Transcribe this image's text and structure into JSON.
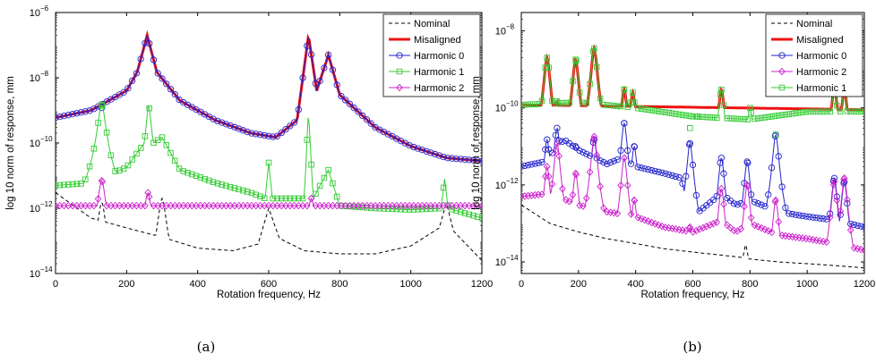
{
  "chart_data": [
    {
      "type": "line",
      "caption": "(a)",
      "xlabel": "Rotation frequency, Hz",
      "ylabel": "log 10 norm of response, mm",
      "xlim": [
        0,
        1200
      ],
      "ylim": [
        1e-14,
        1e-06
      ],
      "y_scale": "log",
      "xticks": [
        0,
        200,
        400,
        600,
        800,
        1000,
        1200
      ],
      "yticks": [
        {
          "value": 1e-14,
          "mantissa": "10",
          "exp": "−14"
        },
        {
          "value": 1e-12,
          "mantissa": "10",
          "exp": "−12"
        },
        {
          "value": 1e-10,
          "mantissa": "10",
          "exp": "−10"
        },
        {
          "value": 1e-08,
          "mantissa": "10",
          "exp": "−8"
        },
        {
          "value": 1e-06,
          "mantissa": "10",
          "exp": "−6"
        }
      ],
      "legend_position": "top-right",
      "series": [
        {
          "name": "Nominal",
          "color": "#000000",
          "style": "dashed",
          "marker": "none",
          "base": [
            [
              0,
              3e-12
            ],
            [
              100,
              5e-13
            ],
            [
              200,
              2.5e-13
            ],
            [
              300,
              1.3e-13
            ],
            [
              400,
              6e-14
            ],
            [
              500,
              5e-14
            ],
            [
              570,
              8e-14
            ],
            [
              600,
              1e-12
            ],
            [
              630,
              1.2e-13
            ],
            [
              700,
              5e-14
            ],
            [
              800,
              4e-14
            ],
            [
              900,
              4e-14
            ],
            [
              1000,
              7e-14
            ],
            [
              1080,
              2.5e-13
            ],
            [
              1100,
              1.5e-12
            ],
            [
              1120,
              2e-13
            ],
            [
              1200,
              2.5e-14
            ]
          ],
          "peaks": [
            [
              130,
              1.5e-12
            ],
            [
              300,
              2e-12
            ]
          ]
        },
        {
          "name": "Misaligned",
          "color": "#ee1111",
          "style": "solid",
          "marker": "none",
          "width": 3,
          "base": [
            [
              0,
              6e-10
            ],
            [
              100,
              1e-09
            ],
            [
              200,
              4e-09
            ],
            [
              230,
              1.5e-08
            ],
            [
              258,
              2e-07
            ],
            [
              285,
              1.5e-08
            ],
            [
              350,
              2e-09
            ],
            [
              450,
              5e-10
            ],
            [
              550,
              2e-10
            ],
            [
              620,
              1.5e-10
            ],
            [
              680,
              5e-10
            ],
            [
              712,
              2e-07
            ],
            [
              735,
              4e-09
            ],
            [
              768,
              5e-08
            ],
            [
              800,
              3e-09
            ],
            [
              900,
              3e-10
            ],
            [
              1000,
              8e-11
            ],
            [
              1100,
              3.5e-11
            ],
            [
              1200,
              2.8e-11
            ]
          ],
          "peaks": [
            [
              130,
              1.3e-09
            ]
          ]
        },
        {
          "name": "Harmonic 0",
          "color": "#2222cc",
          "style": "solid",
          "marker": "circle",
          "base": [
            [
              0,
              6e-10
            ],
            [
              100,
              1e-09
            ],
            [
              200,
              4e-09
            ],
            [
              230,
              1.5e-08
            ],
            [
              258,
              2e-07
            ],
            [
              285,
              1.5e-08
            ],
            [
              350,
              2e-09
            ],
            [
              450,
              5e-10
            ],
            [
              550,
              2e-10
            ],
            [
              620,
              1.5e-10
            ],
            [
              680,
              5e-10
            ],
            [
              712,
              2e-07
            ],
            [
              735,
              4e-09
            ],
            [
              768,
              5e-08
            ],
            [
              800,
              3e-09
            ],
            [
              900,
              3e-10
            ],
            [
              1000,
              8e-11
            ],
            [
              1100,
              3.5e-11
            ],
            [
              1200,
              2.8e-11
            ]
          ],
          "peaks": [
            [
              130,
              1.2e-09
            ]
          ]
        },
        {
          "name": "Harmonic 1",
          "color": "#33cc33",
          "style": "solid",
          "marker": "square",
          "base": [
            [
              0,
              5e-12
            ],
            [
              100,
              6e-12
            ],
            [
              200,
              1.8e-11
            ],
            [
              250,
              1e-10
            ],
            [
              262,
              1.8e-09
            ],
            [
              275,
              1e-10
            ],
            [
              300,
              1.5e-10
            ],
            [
              350,
              1.5e-11
            ],
            [
              450,
              6e-12
            ],
            [
              550,
              3e-12
            ],
            [
              590,
              2e-12
            ],
            [
              600,
              2.5e-11
            ],
            [
              610,
              2e-12
            ],
            [
              700,
              2e-12
            ],
            [
              712,
              1e-09
            ],
            [
              725,
              2e-12
            ],
            [
              768,
              1.5e-11
            ],
            [
              800,
              1.2e-12
            ],
            [
              900,
              1e-12
            ],
            [
              1000,
              9e-13
            ],
            [
              1085,
              1e-12
            ],
            [
              1095,
              8e-12
            ],
            [
              1105,
              1e-12
            ],
            [
              1200,
              5e-13
            ]
          ],
          "peaks": [
            [
              130,
              1.5e-09
            ]
          ]
        },
        {
          "name": "Harmonic 2",
          "color": "#cc22cc",
          "style": "solid",
          "marker": "diamond",
          "base": [
            [
              0,
              1.2e-12
            ],
            [
              1200,
              1.2e-12
            ]
          ],
          "peaks": [
            [
              130,
              7e-12
            ],
            [
              260,
              3e-12
            ],
            [
              720,
              2e-12
            ]
          ]
        }
      ]
    },
    {
      "type": "line",
      "caption": "(b)",
      "xlabel": "Rotation frequency, Hz",
      "ylabel": "log 10 norm of response, mm",
      "xlim": [
        0,
        1200
      ],
      "ylim": [
        5e-15,
        3e-08
      ],
      "y_scale": "log",
      "xticks": [
        0,
        200,
        400,
        600,
        800,
        1000,
        1200
      ],
      "yticks": [
        {
          "value": 1e-14,
          "mantissa": "10",
          "exp": "−14"
        },
        {
          "value": 1e-12,
          "mantissa": "10",
          "exp": "−12"
        },
        {
          "value": 1e-10,
          "mantissa": "10",
          "exp": "−10"
        },
        {
          "value": 1e-08,
          "mantissa": "10",
          "exp": "−8"
        }
      ],
      "legend_position": "top-right",
      "series": [
        {
          "name": "Nominal",
          "color": "#000000",
          "style": "dashed",
          "marker": "none",
          "base": [
            [
              0,
              3e-13
            ],
            [
              100,
              1e-13
            ],
            [
              200,
              6e-14
            ],
            [
              300,
              4e-14
            ],
            [
              400,
              3e-14
            ],
            [
              500,
              2.2e-14
            ],
            [
              600,
              1.8e-14
            ],
            [
              700,
              1.5e-14
            ],
            [
              775,
              1.3e-14
            ],
            [
              785,
              3e-14
            ],
            [
              795,
              1.2e-14
            ],
            [
              900,
              1e-14
            ],
            [
              1000,
              9e-15
            ],
            [
              1100,
              8e-15
            ],
            [
              1200,
              7e-15
            ]
          ],
          "peaks": []
        },
        {
          "name": "Misaligned",
          "color": "#ee1111",
          "style": "solid",
          "marker": "none",
          "width": 3,
          "base": [
            [
              0,
              1.2e-10
            ],
            [
              1200,
              9e-11
            ]
          ],
          "peaks": [
            [
              90,
              2e-09
            ],
            [
              125,
              1.5e-10
            ],
            [
              190,
              1.8e-09
            ],
            [
              255,
              3.5e-09
            ],
            [
              360,
              3e-10
            ],
            [
              390,
              2.5e-10
            ],
            [
              590,
              5e-11
            ],
            [
              615,
              6e-11
            ],
            [
              700,
              3e-10
            ],
            [
              800,
              1e-10
            ],
            [
              890,
              2.5e-11
            ],
            [
              1095,
              3.5e-10
            ],
            [
              1130,
              3e-10
            ]
          ]
        },
        {
          "name": "Harmonic 0",
          "color": "#2222cc",
          "style": "solid",
          "marker": "circle",
          "base": [
            [
              0,
              3e-12
            ],
            [
              80,
              4e-12
            ],
            [
              150,
              1.5e-11
            ],
            [
              200,
              8e-12
            ],
            [
              300,
              3.5e-12
            ],
            [
              350,
              5e-12
            ],
            [
              400,
              3e-12
            ],
            [
              500,
              2e-12
            ],
            [
              560,
              1.5e-12
            ],
            [
              580,
              3e-13
            ],
            [
              600,
              2e-13
            ],
            [
              620,
              2e-13
            ],
            [
              700,
              6e-13
            ],
            [
              750,
              3e-13
            ],
            [
              800,
              4e-13
            ],
            [
              900,
              2e-13
            ],
            [
              1000,
              1.5e-13
            ],
            [
              1100,
              1.2e-13
            ],
            [
              1200,
              8e-14
            ]
          ],
          "peaks": [
            [
              90,
              1.5e-11
            ],
            [
              125,
              3e-11
            ],
            [
              190,
              1e-11
            ],
            [
              255,
              1.5e-11
            ],
            [
              360,
              4e-11
            ],
            [
              395,
              1e-11
            ],
            [
              590,
              1.2e-11
            ],
            [
              700,
              5e-12
            ],
            [
              790,
              4e-12
            ],
            [
              890,
              2e-11
            ],
            [
              1095,
              1.5e-12
            ],
            [
              1130,
              1.2e-12
            ]
          ]
        },
        {
          "name": "Harmonic 2",
          "color": "#cc22cc",
          "style": "solid",
          "marker": "diamond",
          "base": [
            [
              0,
              5e-13
            ],
            [
              100,
              6e-13
            ],
            [
              200,
              3e-13
            ],
            [
              300,
              2e-13
            ],
            [
              400,
              1.5e-13
            ],
            [
              500,
              8e-14
            ],
            [
              600,
              6e-14
            ],
            [
              700,
              1.2e-13
            ],
            [
              750,
              6e-14
            ],
            [
              800,
              1e-13
            ],
            [
              900,
              5e-14
            ],
            [
              1000,
              4e-14
            ],
            [
              1100,
              3e-14
            ],
            [
              1200,
              2e-14
            ]
          ],
          "peaks": [
            [
              90,
              3e-12
            ],
            [
              125,
              1.2e-11
            ],
            [
              190,
              2e-12
            ],
            [
              255,
              1.8e-11
            ],
            [
              360,
              5e-12
            ],
            [
              395,
              4e-13
            ],
            [
              590,
              8e-14
            ],
            [
              700,
              8e-13
            ],
            [
              790,
              1e-12
            ],
            [
              890,
              4e-13
            ],
            [
              1095,
              1.2e-12
            ],
            [
              1130,
              1.5e-12
            ]
          ]
        },
        {
          "name": "Harmonic 1",
          "color": "#33cc33",
          "style": "solid",
          "marker": "square",
          "base": [
            [
              0,
              1.2e-10
            ],
            [
              200,
              1.4e-10
            ],
            [
              400,
              1e-10
            ],
            [
              600,
              6e-11
            ],
            [
              800,
              5e-11
            ],
            [
              1000,
              8e-11
            ],
            [
              1200,
              8e-11
            ]
          ],
          "peaks": [
            [
              90,
              2e-09
            ],
            [
              125,
              1.5e-10
            ],
            [
              190,
              1.8e-09
            ],
            [
              255,
              3.5e-09
            ],
            [
              360,
              3e-10
            ],
            [
              390,
              2.5e-10
            ],
            [
              590,
              3e-11
            ],
            [
              615,
              6e-11
            ],
            [
              700,
              3e-10
            ],
            [
              800,
              1e-10
            ],
            [
              890,
              2e-11
            ],
            [
              1095,
              3.5e-10
            ],
            [
              1130,
              3e-10
            ]
          ]
        }
      ]
    }
  ]
}
